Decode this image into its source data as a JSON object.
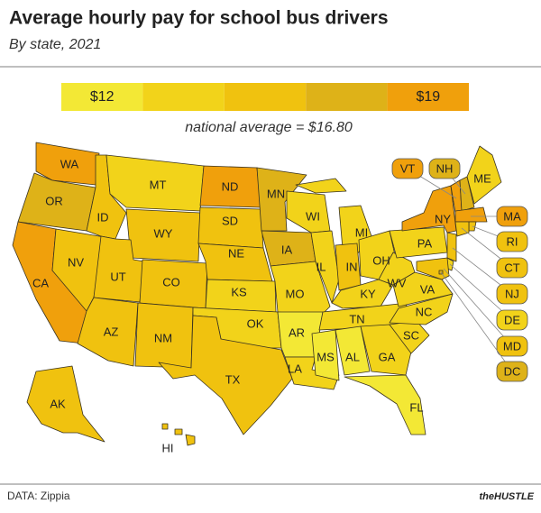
{
  "header": {
    "title": "Average hourly pay for school bus drivers",
    "subtitle": "By state, 2021"
  },
  "legend": {
    "bins": [
      {
        "color": "#f3e835",
        "label": "$12"
      },
      {
        "color": "#f2d31a"
      },
      {
        "color": "#f0c20f"
      },
      {
        "color": "#deb218"
      },
      {
        "color": "#f0a00c",
        "label": "$19"
      }
    ],
    "note": "national average = $16.80"
  },
  "states": [
    {
      "label": "WA",
      "color": "#f0a00c"
    },
    {
      "label": "OR",
      "color": "#deb218"
    },
    {
      "label": "CA",
      "color": "#f0a00c"
    },
    {
      "label": "NV",
      "color": "#f0c20f"
    },
    {
      "label": "ID",
      "color": "#f0c20f"
    },
    {
      "label": "MT",
      "color": "#f2d31a"
    },
    {
      "label": "WY",
      "color": "#f0c20f"
    },
    {
      "label": "UT",
      "color": "#f0c20f"
    },
    {
      "label": "CO",
      "color": "#f0c20f"
    },
    {
      "label": "AZ",
      "color": "#f0c20f"
    },
    {
      "label": "NM",
      "color": "#f0c20f"
    },
    {
      "label": "ND",
      "color": "#f0a00c"
    },
    {
      "label": "SD",
      "color": "#f0c20f"
    },
    {
      "label": "NE",
      "color": "#f0c20f"
    },
    {
      "label": "KS",
      "color": "#f2d31a"
    },
    {
      "label": "OK",
      "color": "#f2d31a"
    },
    {
      "label": "TX",
      "color": "#f0c20f"
    },
    {
      "label": "MN",
      "color": "#deb218"
    },
    {
      "label": "IA",
      "color": "#deb218"
    },
    {
      "label": "MO",
      "color": "#f2d31a"
    },
    {
      "label": "AR",
      "color": "#f3e835"
    },
    {
      "label": "LA",
      "color": "#f2d31a"
    },
    {
      "label": "WI",
      "color": "#f2d31a"
    },
    {
      "label": "IL",
      "color": "#f2d31a"
    },
    {
      "label": "MI",
      "color": "#f2d31a"
    },
    {
      "label": "IN",
      "color": "#f0c20f"
    },
    {
      "label": "OH",
      "color": "#f2d31a"
    },
    {
      "label": "KY",
      "color": "#f2d31a"
    },
    {
      "label": "TN",
      "color": "#f2d31a"
    },
    {
      "label": "MS",
      "color": "#f3e835"
    },
    {
      "label": "AL",
      "color": "#f3e835"
    },
    {
      "label": "GA",
      "color": "#f2d31a"
    },
    {
      "label": "FL",
      "color": "#f3e835"
    },
    {
      "label": "SC",
      "color": "#f2d31a"
    },
    {
      "label": "NC",
      "color": "#f2d31a"
    },
    {
      "label": "VA",
      "color": "#f2d31a"
    },
    {
      "label": "WV",
      "color": "#f2d31a"
    },
    {
      "label": "PA",
      "color": "#f2d31a"
    },
    {
      "label": "NY",
      "color": "#f0a00c"
    },
    {
      "label": "ME",
      "color": "#f2d31a"
    },
    {
      "label": "AK",
      "color": "#f0c20f"
    },
    {
      "label": "HI",
      "color": "#f0c20f"
    },
    {
      "label": "VT",
      "color": "#f0a00c"
    },
    {
      "label": "NH",
      "color": "#deb218"
    },
    {
      "label": "MA",
      "color": "#f0a00c"
    },
    {
      "label": "RI",
      "color": "#f0c20f"
    },
    {
      "label": "CT",
      "color": "#f0c20f"
    },
    {
      "label": "NJ",
      "color": "#f0c20f"
    },
    {
      "label": "DE",
      "color": "#f2d31a"
    },
    {
      "label": "MD",
      "color": "#f0c20f"
    },
    {
      "label": "DC",
      "color": "#deb218"
    }
  ],
  "footer": {
    "source": "DATA: Zippia",
    "brand": "theHUSTLE"
  }
}
